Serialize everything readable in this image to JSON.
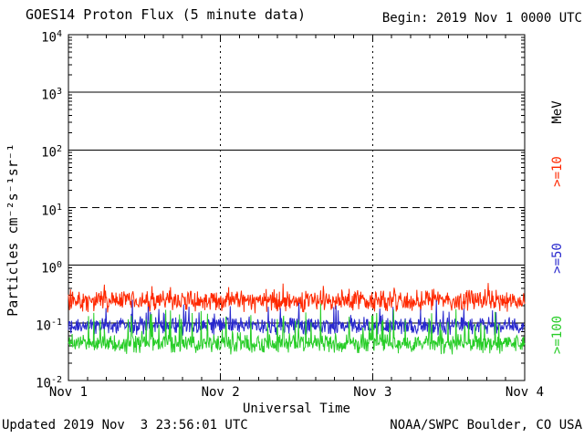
{
  "footer": {
    "updated": "Updated 2019 Nov  3 23:56:01 UTC",
    "credit": "NOAA/SWPC Boulder, CO USA"
  },
  "chart_data": {
    "type": "line",
    "title": "GOES14 Proton Flux (5 minute data)",
    "begin_label": "Begin: 2019 Nov 1 0000 UTC",
    "xlabel": "Universal Time",
    "ylabel": "Particles cm⁻²s⁻¹sr⁻¹",
    "x_ticks": [
      "Nov 1",
      "Nov 2",
      "Nov 3",
      "Nov 4"
    ],
    "y_tick_exponents": [
      "4",
      "3",
      "2",
      "1",
      "0",
      "-1",
      "-2"
    ],
    "ylim_log10": [
      -2,
      4
    ],
    "xlim_days": [
      0,
      3
    ],
    "minor_tick_hours": 3,
    "samples_per_day": 288,
    "points_per_series": 864,
    "grid": {
      "solid_hlines_log10": [
        3,
        2,
        0,
        -1
      ],
      "dashed_hlines_log10": [
        1
      ],
      "dashed_vlines_day": [
        1,
        2
      ]
    },
    "legend_title": "MeV",
    "axis_color": "#000000",
    "series": [
      {
        "label": ">=10",
        "energy": ">=10 MeV",
        "color": "#ff2800",
        "typical_flux": 0.24,
        "flux_range": [
          0.14,
          0.49
        ],
        "base_log10": -0.62,
        "noise_log10": 0.11,
        "spike_prob": 0.05,
        "spike_log10": 0.18,
        "clamp_log10": [
          -0.85,
          -0.31
        ],
        "seed": 911
      },
      {
        "label": ">=50",
        "energy": ">=50 MeV",
        "color": "#2828cd",
        "typical_flux": 0.09,
        "flux_range": [
          0.055,
          0.28
        ],
        "base_log10": -1.05,
        "noise_log10": 0.09,
        "spike_prob": 0.06,
        "spike_log10": 0.38,
        "clamp_log10": [
          -1.26,
          -0.56
        ],
        "seed": 407
      },
      {
        "label": ">=100",
        "energy": ">=100 MeV",
        "color": "#28cd28",
        "typical_flux": 0.045,
        "flux_range": [
          0.028,
          0.25
        ],
        "base_log10": -1.36,
        "noise_log10": 0.1,
        "spike_prob": 0.07,
        "spike_log10": 0.55,
        "clamp_log10": [
          -1.56,
          -0.6
        ],
        "seed": 523
      }
    ]
  }
}
